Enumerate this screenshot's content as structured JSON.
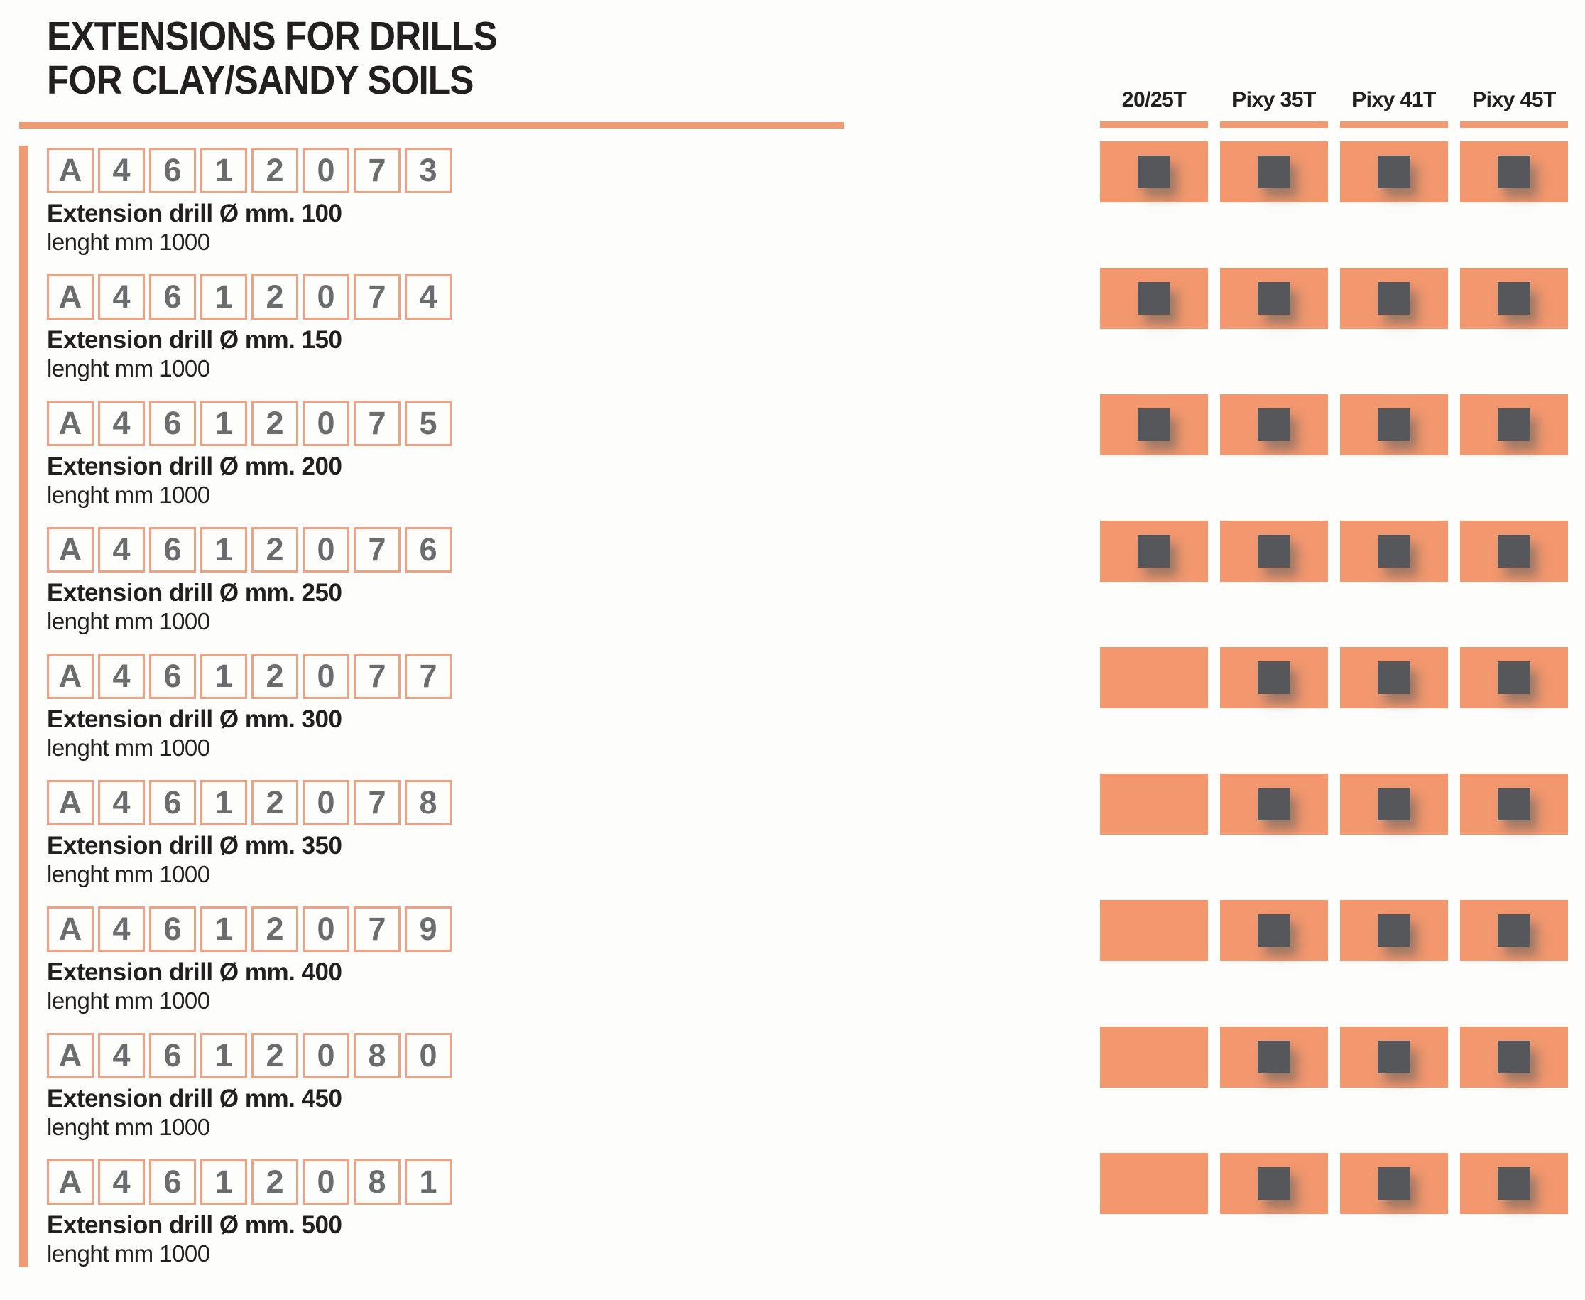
{
  "page": {
    "title_line1": "EXTENSIONS FOR DRILLS",
    "title_line2": "FOR CLAY/SANDY SOILS"
  },
  "columns": [
    "20/25T",
    "Pixy 35T",
    "Pixy 41T",
    "Pixy 45T"
  ],
  "rows": [
    {
      "code": [
        "A",
        "4",
        "6",
        "1",
        "2",
        "0",
        "7",
        "3"
      ],
      "description": "Extension drill Ø mm. 100",
      "length_label": "lenght mm 1000",
      "compatibility": [
        true,
        true,
        true,
        true
      ]
    },
    {
      "code": [
        "A",
        "4",
        "6",
        "1",
        "2",
        "0",
        "7",
        "4"
      ],
      "description": "Extension drill Ø mm. 150",
      "length_label": "lenght mm 1000",
      "compatibility": [
        true,
        true,
        true,
        true
      ]
    },
    {
      "code": [
        "A",
        "4",
        "6",
        "1",
        "2",
        "0",
        "7",
        "5"
      ],
      "description": "Extension drill Ø mm. 200",
      "length_label": "lenght mm 1000",
      "compatibility": [
        true,
        true,
        true,
        true
      ]
    },
    {
      "code": [
        "A",
        "4",
        "6",
        "1",
        "2",
        "0",
        "7",
        "6"
      ],
      "description": "Extension drill Ø mm. 250",
      "length_label": "lenght mm 1000",
      "compatibility": [
        true,
        true,
        true,
        true
      ]
    },
    {
      "code": [
        "A",
        "4",
        "6",
        "1",
        "2",
        "0",
        "7",
        "7"
      ],
      "description": "Extension drill Ø mm. 300",
      "length_label": "lenght mm 1000",
      "compatibility": [
        false,
        true,
        true,
        true
      ]
    },
    {
      "code": [
        "A",
        "4",
        "6",
        "1",
        "2",
        "0",
        "7",
        "8"
      ],
      "description": "Extension drill Ø mm. 350",
      "length_label": "lenght mm 1000",
      "compatibility": [
        false,
        true,
        true,
        true
      ]
    },
    {
      "code": [
        "A",
        "4",
        "6",
        "1",
        "2",
        "0",
        "7",
        "9"
      ],
      "description": "Extension drill Ø mm. 400",
      "length_label": "lenght mm 1000",
      "compatibility": [
        false,
        true,
        true,
        true
      ]
    },
    {
      "code": [
        "A",
        "4",
        "6",
        "1",
        "2",
        "0",
        "8",
        "0"
      ],
      "description": "Extension drill Ø mm. 450",
      "length_label": "lenght mm 1000",
      "compatibility": [
        false,
        true,
        true,
        true
      ]
    },
    {
      "code": [
        "A",
        "4",
        "6",
        "1",
        "2",
        "0",
        "8",
        "1"
      ],
      "description": "Extension drill Ø mm. 500",
      "length_label": "lenght mm 1000",
      "compatibility": [
        false,
        true,
        true,
        true
      ]
    }
  ],
  "colors": {
    "accent_orange": "#F29B72",
    "cell_orange": "#F2976E",
    "code_box_border": "#EFA183",
    "mark_dark": "#56575A",
    "code_text_gray": "#6B6C6E",
    "ink_black": "#231F20"
  }
}
